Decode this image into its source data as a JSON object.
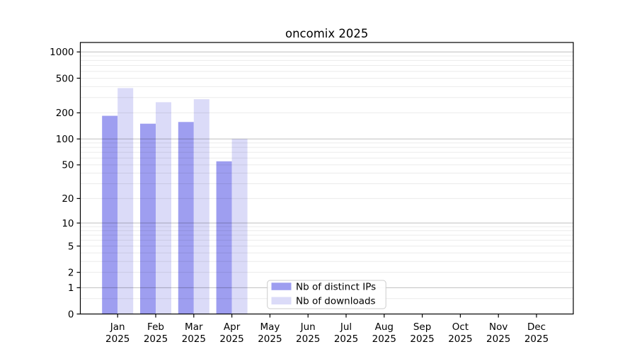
{
  "figure": {
    "background": "#ffffff"
  },
  "chart_data": {
    "type": "bar",
    "title": "oncomix 2025",
    "x_categories": [
      "Jan",
      "Feb",
      "Mar",
      "Apr",
      "May",
      "Jun",
      "Jul",
      "Aug",
      "Sep",
      "Oct",
      "Nov",
      "Dec"
    ],
    "x_year_label": "2025",
    "series": [
      {
        "name": "Nb of distinct IPs",
        "color": "#9e9ef0",
        "values": [
          185,
          150,
          157,
          55,
          0,
          0,
          0,
          0,
          0,
          0,
          0,
          0
        ]
      },
      {
        "name": "Nb of downloads",
        "color": "#dbdbf8",
        "values": [
          385,
          265,
          287,
          100,
          0,
          0,
          0,
          0,
          0,
          0,
          0,
          0
        ]
      }
    ],
    "y_scale": "log1p",
    "ylim": [
      0,
      1284
    ],
    "y_tick_values": [
      0,
      1,
      2,
      5,
      10,
      20,
      50,
      100,
      200,
      500,
      1000
    ],
    "y_major_gridlines": [
      1,
      10,
      100,
      1000
    ],
    "y_minor_gridlines": [
      0.5,
      2,
      3,
      4,
      5,
      6,
      7,
      8,
      9,
      20,
      30,
      40,
      50,
      60,
      70,
      80,
      90,
      200,
      300,
      400,
      500,
      600,
      700,
      800,
      900
    ],
    "grid": true,
    "legend": {
      "position": "inside-bottom-center",
      "entries": [
        "Nb of distinct IPs",
        "Nb of downloads"
      ]
    },
    "colors": {
      "axis": "#000000",
      "major_grid": "rgba(0,0,0,0.25)",
      "minor_grid": "rgba(0,0,0,0.08)",
      "legend_border": "#cccccc",
      "legend_background": "#ffffff"
    }
  }
}
